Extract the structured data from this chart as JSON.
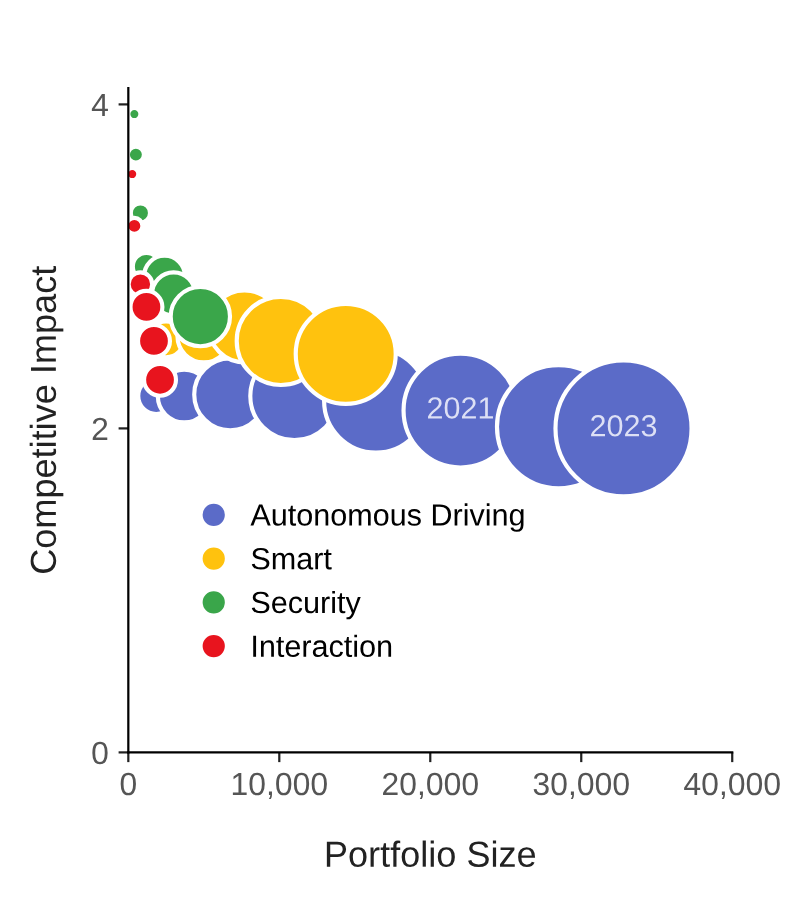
{
  "chart_data": {
    "type": "bubble",
    "xlabel": "Portfolio Size",
    "ylabel": "Competitive Impact",
    "xlim": [
      0,
      40000
    ],
    "ylim": [
      0,
      4.1
    ],
    "xticks": [
      {
        "value": 0,
        "label": "0"
      },
      {
        "value": 10000,
        "label": "10,000"
      },
      {
        "value": 20000,
        "label": "20,000"
      },
      {
        "value": 30000,
        "label": "30,000"
      },
      {
        "value": 40000,
        "label": "40,000"
      }
    ],
    "yticks": [
      0,
      2,
      4
    ],
    "grid": false,
    "legend": "bottom left",
    "series": [
      {
        "name": "Autonomous Driving",
        "color": "#5b6bc8",
        "x": [
          1850,
          3700,
          6750,
          11000,
          16400,
          22000,
          28500,
          32800
        ],
        "values": [
          2.2,
          2.2,
          2.21,
          2.2,
          2.17,
          2.11,
          2.01,
          2.0
        ],
        "sizes": [
          0.07,
          0.15,
          0.28,
          0.42,
          0.58,
          0.7,
          0.82,
          1
        ]
      },
      {
        "name": "Smart",
        "color": "#ffc20e",
        "x": [
          2500,
          5000,
          7700,
          10100,
          14400
        ],
        "values": [
          2.55,
          2.57,
          2.63,
          2.54,
          2.46
        ],
        "sizes": [
          0.07,
          0.15,
          0.28,
          0.42,
          0.54
        ]
      },
      {
        "name": "Security",
        "color": "#3aa64a",
        "x": [
          400,
          500,
          800,
          1200,
          2400,
          3000,
          4770
        ],
        "values": [
          3.94,
          3.69,
          3.33,
          3.0,
          2.94,
          2.83,
          2.69
        ],
        "sizes": [
          0.008,
          0.014,
          0.02,
          0.04,
          0.09,
          0.1,
          0.19
        ]
      },
      {
        "name": "Interaction",
        "color": "#e8141e",
        "x": [
          260,
          400,
          800,
          1200,
          1700,
          2100
        ],
        "values": [
          3.57,
          3.25,
          2.89,
          2.75,
          2.54,
          2.3
        ],
        "sizes": [
          0.008,
          0.014,
          0.03,
          0.055,
          0.055,
          0.055
        ]
      }
    ],
    "annotations": [
      {
        "text": "2021",
        "x": 22000,
        "y": 2.11
      },
      {
        "text": "2023",
        "x": 32800,
        "y": 2.0
      }
    ]
  }
}
